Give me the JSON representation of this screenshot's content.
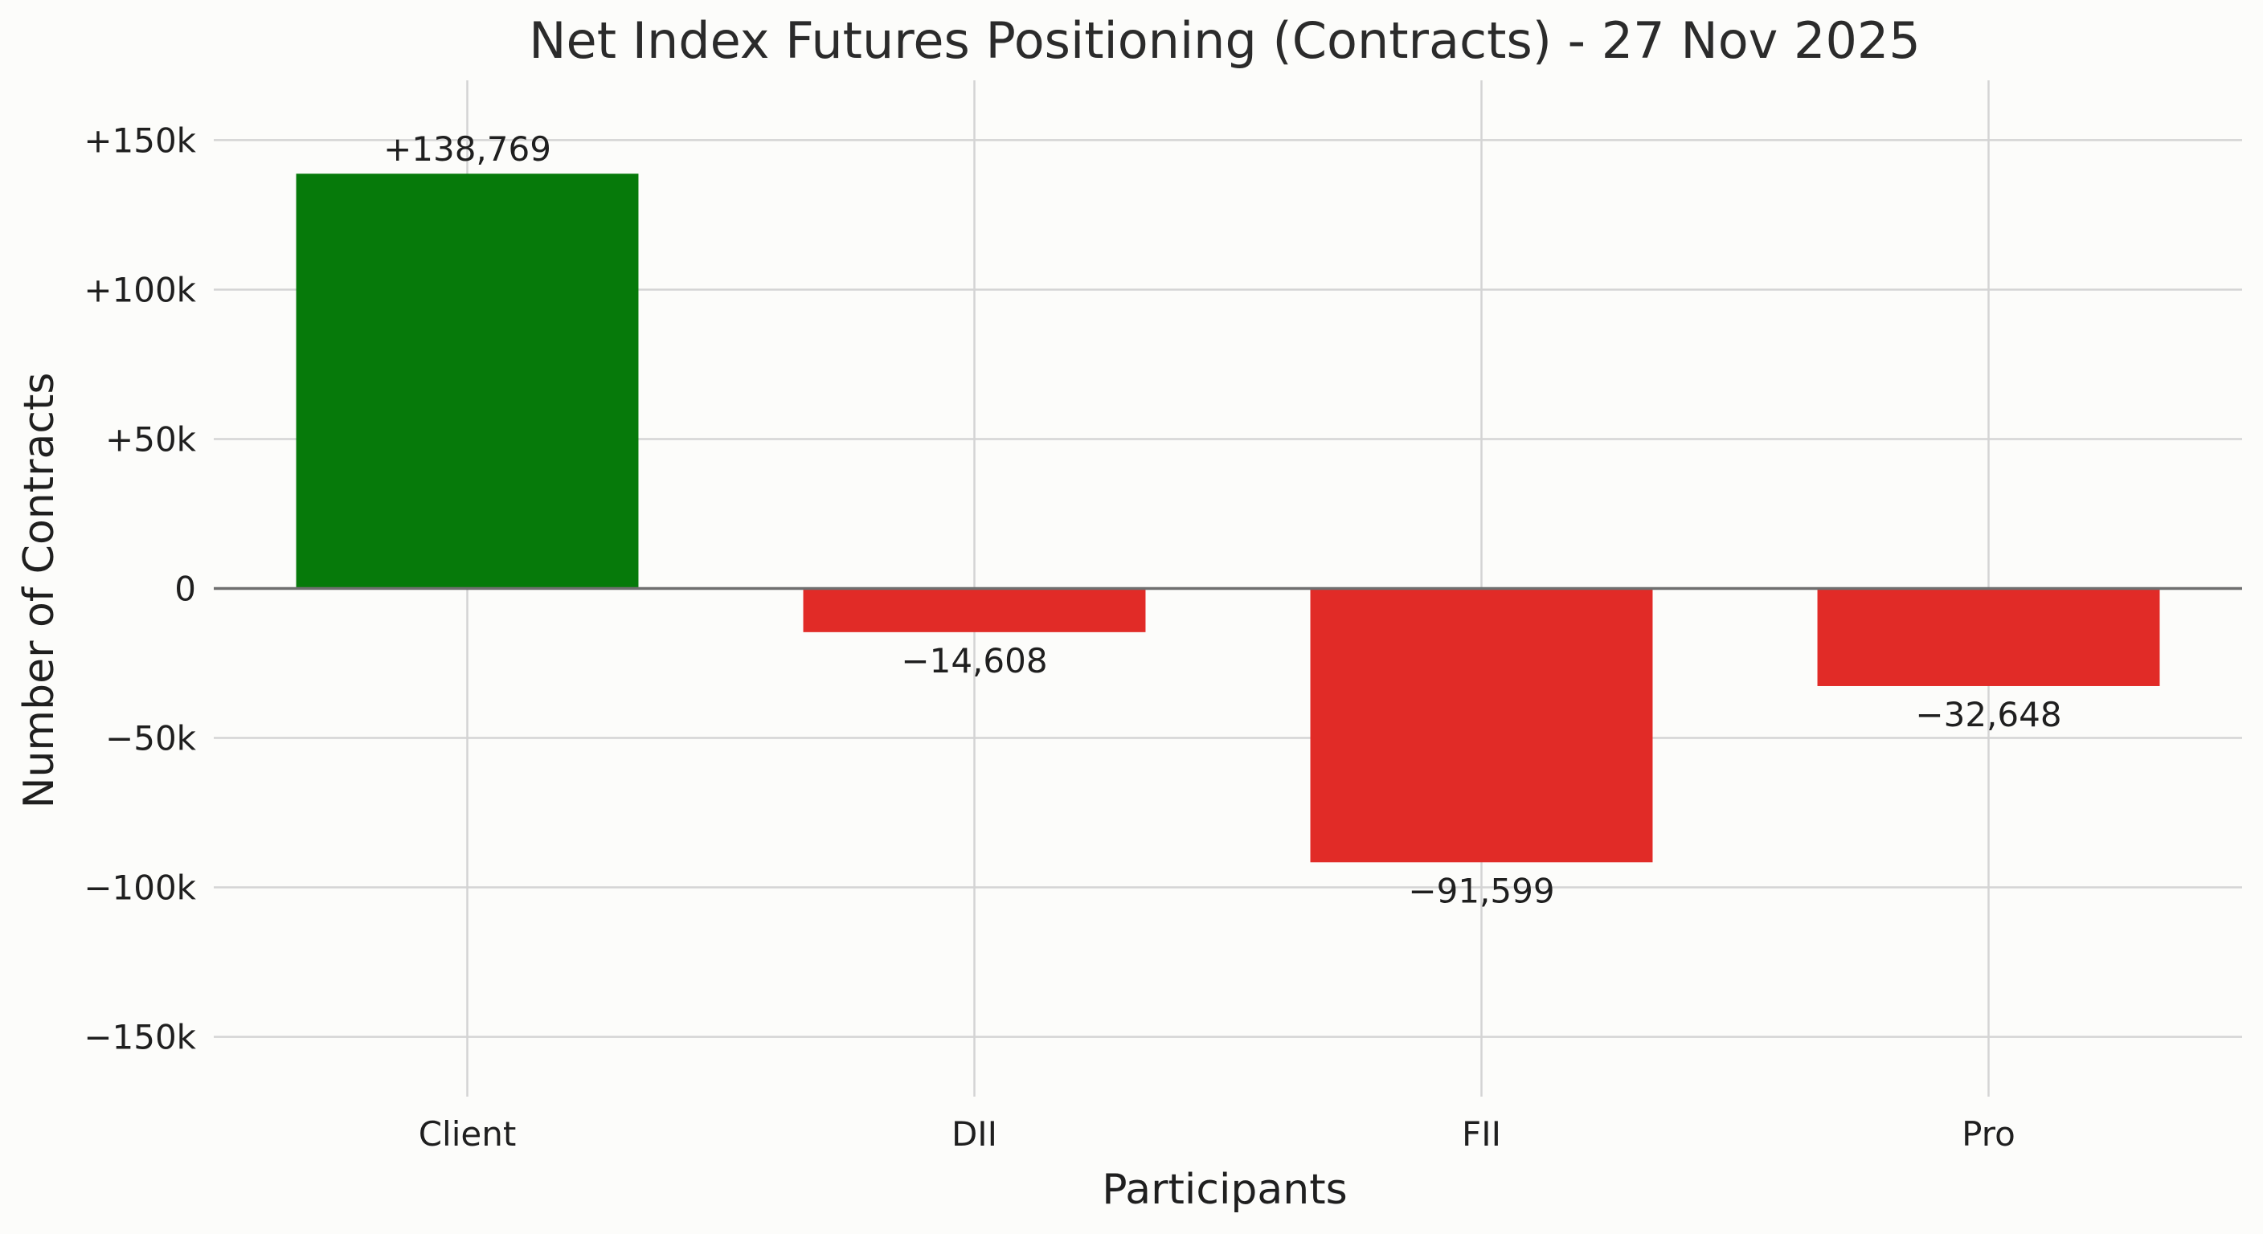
{
  "chart_data": {
    "type": "bar",
    "title": "Net Index Futures Positioning (Contracts) - 27 Nov 2025",
    "xlabel": "Participants",
    "ylabel": "Number of Contracts",
    "categories": [
      "Client",
      "DII",
      "FII",
      "Pro"
    ],
    "values": [
      138769,
      -14608,
      -91599,
      -32648
    ],
    "data_labels": [
      "+138,769",
      "−14,608",
      "−91,599",
      "−32,648"
    ],
    "ylim": [
      -170000,
      170000
    ],
    "yticks": [
      150000,
      100000,
      50000,
      0,
      -50000,
      -100000,
      -150000
    ],
    "ytick_labels": [
      "+150k",
      "+100k",
      "+50k",
      "0",
      "−50k",
      "−100k",
      "−150k"
    ],
    "grid": true,
    "colors": {
      "positive": "#067a0a",
      "negative": "#e12b27",
      "background": "#fcfcfa",
      "grid": "#d4d4d4",
      "zero_line": "#6f6f6f"
    }
  }
}
